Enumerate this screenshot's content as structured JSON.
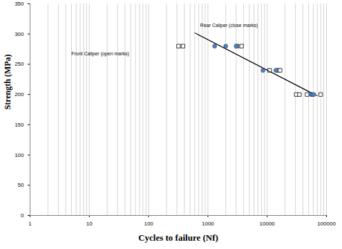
{
  "chart_data": {
    "type": "scatter",
    "x_label": "Cycles to failure (Nf)",
    "y_label": "Strength (MPa)",
    "log": "x",
    "grid": "x",
    "xlim": [
      1,
      100000
    ],
    "xticks": [
      1,
      10,
      100,
      1000,
      10000,
      100000
    ],
    "ylim": [
      0,
      350
    ],
    "yticks": [
      0,
      50,
      100,
      150,
      200,
      250,
      300,
      350
    ],
    "series": [
      {
        "name": "Front Caliper (open marks)",
        "color": "#000000",
        "marker": "square",
        "x": [
          320,
          380,
          3100,
          3700,
          11000,
          15000,
          16500,
          31000,
          35000,
          47000,
          80000
        ],
        "values": [
          280,
          280,
          280,
          280,
          240,
          240,
          240,
          200,
          200,
          200,
          200
        ],
        "fit": {
          "x": [
            600,
            70000
          ],
          "values": [
            302,
            198
          ]
        }
      },
      {
        "name": "Rear Caliper (close marks)",
        "color": "#4f81bd",
        "marker": "circle",
        "x": [
          1300,
          2000,
          3000,
          8500,
          14000,
          55000,
          58000,
          61000
        ],
        "values": [
          280,
          280,
          280,
          240,
          240,
          200,
          200,
          200
        ],
        "fit": {
          "x": [
            650,
            62000
          ],
          "values": [
            300,
            200
          ]
        }
      }
    ]
  }
}
